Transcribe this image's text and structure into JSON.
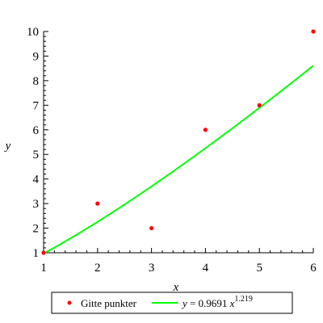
{
  "chart_data": {
    "type": "scatter",
    "xlabel": "x",
    "ylabel": "y",
    "xlim": [
      1,
      6
    ],
    "ylim": [
      1,
      10
    ],
    "x_ticks": [
      1,
      2,
      3,
      4,
      5,
      6
    ],
    "y_ticks": [
      1,
      2,
      3,
      4,
      5,
      6,
      7,
      8,
      9,
      10
    ],
    "grid": false,
    "legend_position": "bottom",
    "series": [
      {
        "name": "Gitte punkter",
        "kind": "points",
        "color": "#ff0000",
        "points": [
          [
            1,
            1
          ],
          [
            2,
            3
          ],
          [
            3,
            2
          ],
          [
            4,
            6
          ],
          [
            5,
            7
          ],
          [
            6,
            10
          ]
        ]
      },
      {
        "name": "y = 0.9691 x^1.219",
        "kind": "curve",
        "color": "#00ff00",
        "model": {
          "a": 0.9691,
          "b": 1.219
        },
        "legend_parts": {
          "lhs": "y",
          "eq": " = 0.9691 ",
          "var": "x",
          "exp": "1.219"
        }
      }
    ]
  }
}
